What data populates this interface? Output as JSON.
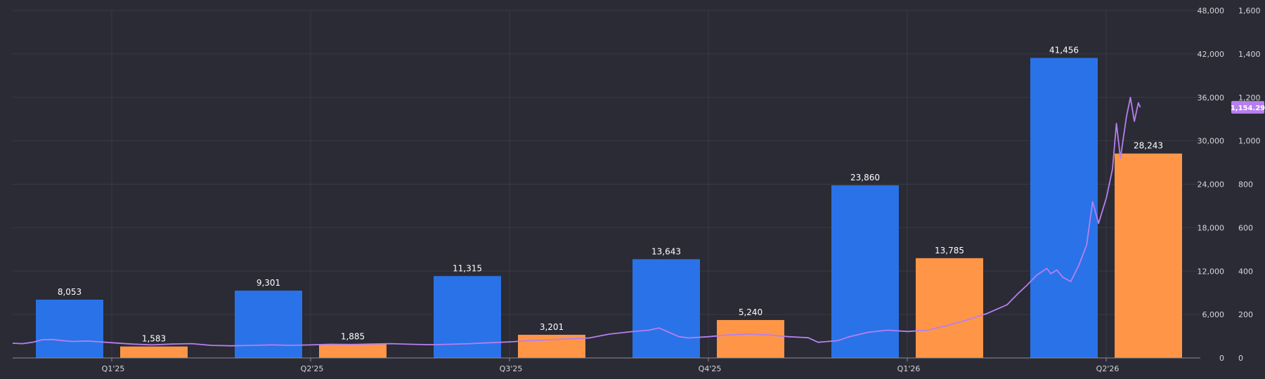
{
  "chart_data": {
    "type": "bar",
    "categories": [
      "Q1'25",
      "Q2'25",
      "Q3'25",
      "Q4'25",
      "Q1'26",
      "Q2'26"
    ],
    "series": [
      {
        "values": [
          8053,
          9301,
          11315,
          13643,
          23860,
          41456
        ],
        "color": "#2a72e8",
        "axis": "left"
      },
      {
        "values": [
          1583,
          1885,
          3201,
          5240,
          13785,
          28243
        ],
        "color": "#ff9647",
        "axis": "left"
      }
    ],
    "bar_labels": [
      [
        "8,053",
        "9,301",
        "11,315",
        "13,643",
        "23,860",
        "41,456"
      ],
      [
        "1,583",
        "1,885",
        "3,201",
        "5,240",
        "13,785",
        "28,243"
      ]
    ],
    "line_series": {
      "type": "line",
      "axis": "right",
      "color": "#b67ff0",
      "last_value_label": "1,154.29",
      "points": [
        [
          0.0,
          68
        ],
        [
          0.05,
          66
        ],
        [
          0.1,
          72
        ],
        [
          0.15,
          84
        ],
        [
          0.2,
          85
        ],
        [
          0.25,
          80
        ],
        [
          0.3,
          76
        ],
        [
          0.38,
          78
        ],
        [
          0.5,
          70
        ],
        [
          0.6,
          64
        ],
        [
          0.7,
          60
        ],
        [
          0.8,
          64
        ],
        [
          0.9,
          66
        ],
        [
          1.0,
          58
        ],
        [
          1.1,
          56
        ],
        [
          1.2,
          58
        ],
        [
          1.3,
          60
        ],
        [
          1.4,
          58
        ],
        [
          1.5,
          60
        ],
        [
          1.6,
          63
        ],
        [
          1.7,
          62
        ],
        [
          1.8,
          64
        ],
        [
          1.9,
          66
        ],
        [
          2.0,
          63
        ],
        [
          2.1,
          61
        ],
        [
          2.2,
          63
        ],
        [
          2.3,
          66
        ],
        [
          2.4,
          70
        ],
        [
          2.5,
          74
        ],
        [
          2.6,
          80
        ],
        [
          2.7,
          84
        ],
        [
          2.8,
          88
        ],
        [
          2.9,
          92
        ],
        [
          3.0,
          110
        ],
        [
          3.1,
          120
        ],
        [
          3.2,
          128
        ],
        [
          3.25,
          138
        ],
        [
          3.3,
          118
        ],
        [
          3.35,
          98
        ],
        [
          3.4,
          92
        ],
        [
          3.5,
          98
        ],
        [
          3.6,
          106
        ],
        [
          3.7,
          110
        ],
        [
          3.8,
          106
        ],
        [
          3.9,
          98
        ],
        [
          4.0,
          93
        ],
        [
          4.05,
          72
        ],
        [
          4.1,
          76
        ],
        [
          4.15,
          80
        ],
        [
          4.2,
          96
        ],
        [
          4.3,
          118
        ],
        [
          4.4,
          128
        ],
        [
          4.5,
          122
        ],
        [
          4.6,
          128
        ],
        [
          4.7,
          150
        ],
        [
          4.8,
          175
        ],
        [
          4.9,
          205
        ],
        [
          5.0,
          245
        ],
        [
          5.05,
          292
        ],
        [
          5.1,
          335
        ],
        [
          5.15,
          382
        ],
        [
          5.2,
          412
        ],
        [
          5.22,
          388
        ],
        [
          5.25,
          405
        ],
        [
          5.28,
          372
        ],
        [
          5.32,
          352
        ],
        [
          5.36,
          425
        ],
        [
          5.4,
          520
        ],
        [
          5.43,
          720
        ],
        [
          5.46,
          620
        ],
        [
          5.5,
          740
        ],
        [
          5.53,
          870
        ],
        [
          5.55,
          1080
        ],
        [
          5.57,
          920
        ],
        [
          5.6,
          1110
        ],
        [
          5.62,
          1200
        ],
        [
          5.64,
          1090
        ],
        [
          5.66,
          1175
        ],
        [
          5.67,
          1154.29
        ]
      ]
    },
    "y_left": {
      "ylim": [
        0,
        48000
      ],
      "ticks": [
        "0",
        "6,000",
        "12,000",
        "18,000",
        "24,000",
        "30,000",
        "36,000",
        "42,000",
        "48,000"
      ]
    },
    "y_right": {
      "ylim": [
        0,
        1600
      ],
      "ticks": [
        "0",
        "200",
        "400",
        "600",
        "800",
        "1,000",
        "1,200",
        "1,400",
        "1,600"
      ]
    },
    "grid": true,
    "xlabel": "",
    "ylabel": ""
  }
}
